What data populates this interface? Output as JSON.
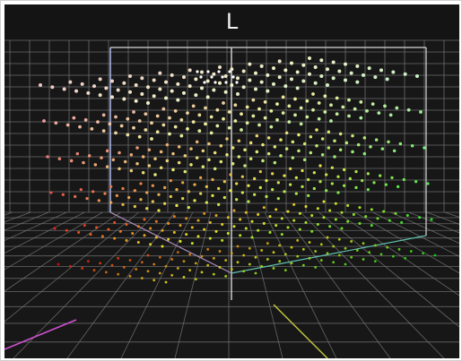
{
  "viewer": {
    "axis_label": "L",
    "background_color": "#171717",
    "grid_color": "#7a7a7a",
    "bounding_box_color": "#d8d8d8"
  },
  "icons": [
    "gamut-cloud-icon"
  ]
}
